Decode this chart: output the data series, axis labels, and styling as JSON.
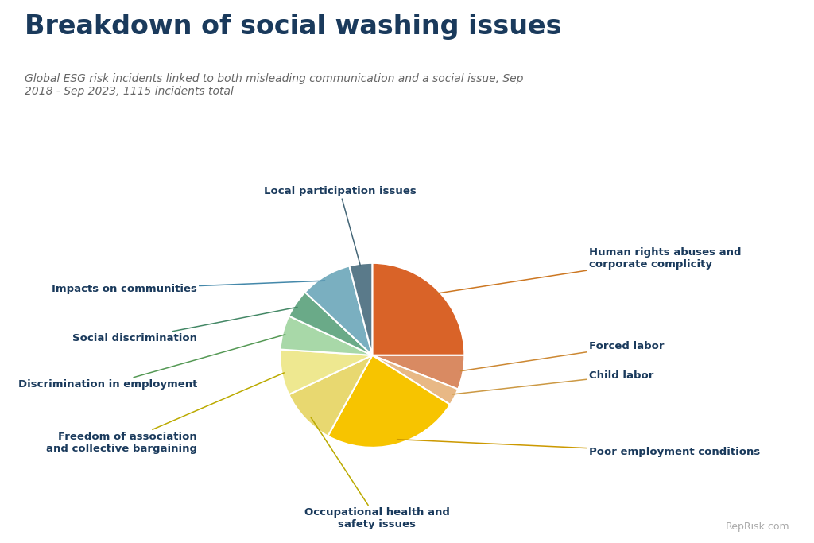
{
  "title": "Breakdown of social washing issues",
  "subtitle": "Global ESG risk incidents linked to both misleading communication and a social issue, Sep\n2018 - Sep 2023, 1115 incidents total",
  "watermark": "RepRisk.com",
  "slices": [
    {
      "label": "Human rights abuses and\ncorporate complicity",
      "value": 25,
      "color": "#D96328",
      "arrow_color": "#CC7722"
    },
    {
      "label": "Forced labor",
      "value": 6,
      "color": "#D98A62",
      "arrow_color": "#CC8833"
    },
    {
      "label": "Child labor",
      "value": 3,
      "color": "#E8B885",
      "arrow_color": "#CC9944"
    },
    {
      "label": "Poor employment conditions",
      "value": 24,
      "color": "#F7C400",
      "arrow_color": "#CC9900"
    },
    {
      "label": "Occupational health and\nsafety issues",
      "value": 10,
      "color": "#E8D870",
      "arrow_color": "#BBAA00"
    },
    {
      "label": "Freedom of association\nand collective bargaining",
      "value": 8,
      "color": "#EEE890",
      "arrow_color": "#BBAA00"
    },
    {
      "label": "Discrimination in employment",
      "value": 6,
      "color": "#A8D8A8",
      "arrow_color": "#559955"
    },
    {
      "label": "Social discrimination",
      "value": 5,
      "color": "#6AAA88",
      "arrow_color": "#448866"
    },
    {
      "label": "Impacts on communities",
      "value": 9,
      "color": "#7AAFC0",
      "arrow_color": "#4488AA"
    },
    {
      "label": "Local participation issues",
      "value": 4,
      "color": "#5A7A8A",
      "arrow_color": "#446677"
    }
  ],
  "title_color": "#1A3A5C",
  "subtitle_color": "#666666",
  "label_color": "#1A3A5C",
  "background_color": "#FFFFFF"
}
